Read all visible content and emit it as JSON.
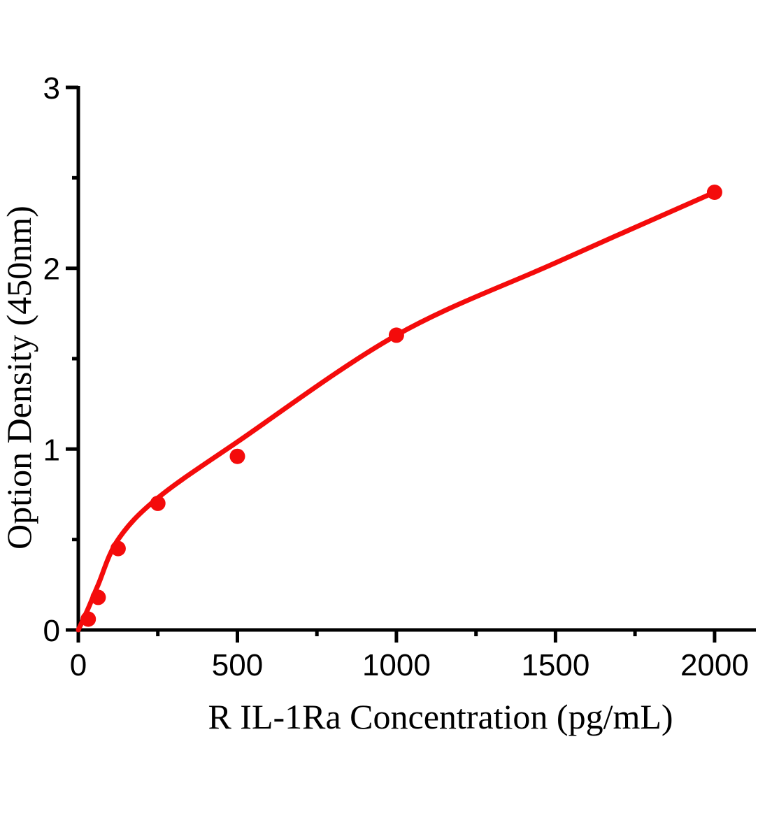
{
  "figure": {
    "background": "#ffffff",
    "axis_color": "#000000"
  },
  "chart_data": {
    "type": "scatter",
    "title": "",
    "xlabel": "R IL-1Ra Concentration (pg/mL)",
    "ylabel": "Option Density (450nm)",
    "xlim": [
      0,
      2130
    ],
    "ylim": [
      0,
      3
    ],
    "x_major_ticks": [
      0,
      500,
      1000,
      1500,
      2000
    ],
    "x_minor_ticks": [
      250,
      750,
      1250,
      1750
    ],
    "y_major_ticks": [
      0,
      1,
      2,
      3
    ],
    "y_minor_ticks": [
      0.5,
      1.5,
      2.5
    ],
    "grid": false,
    "legend_position": "none",
    "accent_color": "#f40b0b",
    "series": [
      {
        "name": "standard-points",
        "type": "scatter",
        "marker": "circle",
        "color": "#f40b0b",
        "x": [
          31.25,
          62.5,
          125,
          250,
          500,
          1000,
          2000
        ],
        "y": [
          0.06,
          0.18,
          0.45,
          0.7,
          0.96,
          1.63,
          2.42
        ]
      },
      {
        "name": "fitted-curve",
        "type": "line",
        "color": "#f40b0b",
        "x": [
          0,
          31.25,
          62.5,
          125,
          250,
          500,
          1000,
          1500,
          2000
        ],
        "y": [
          0,
          0.12,
          0.25,
          0.5,
          0.73,
          1.04,
          1.63,
          2.03,
          2.42
        ]
      }
    ]
  }
}
